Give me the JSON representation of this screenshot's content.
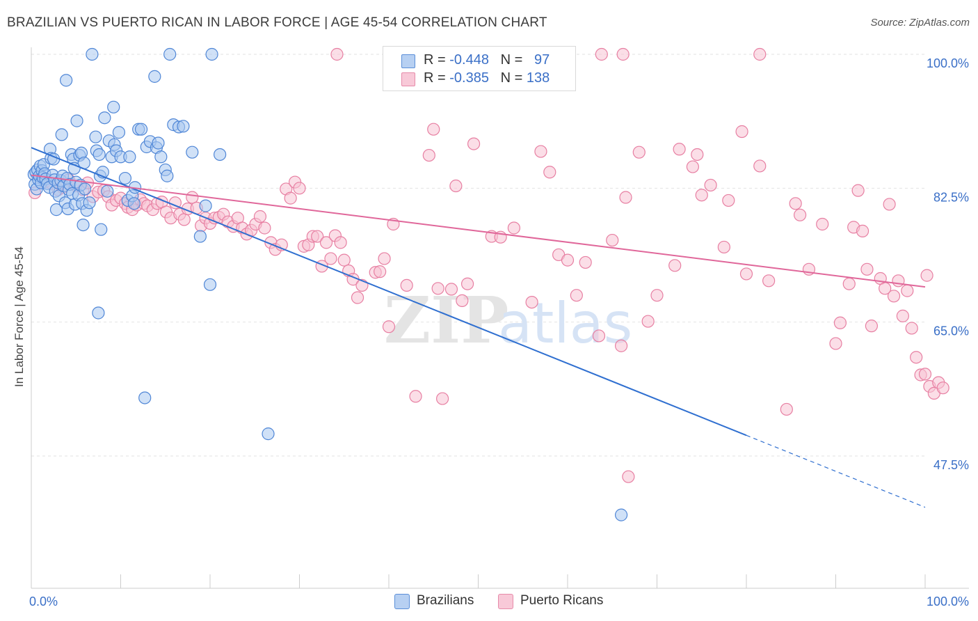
{
  "title": "BRAZILIAN VS PUERTO RICAN IN LABOR FORCE | AGE 45-54 CORRELATION CHART",
  "source": "Source: ZipAtlas.com",
  "watermark": {
    "zip": "ZIP",
    "atlas": "atlas"
  },
  "legend": {
    "rows": [
      {
        "r_label": "R = ",
        "r_value": "-0.448",
        "n_label": "N = ",
        "n_value": "97"
      },
      {
        "r_label": "R = ",
        "r_value": "-0.385",
        "n_label": "N = ",
        "n_value": "138"
      }
    ]
  },
  "bottom_legend": [
    "Brazilians",
    "Puerto Ricans"
  ],
  "colors": {
    "blue_fill": "#aac8f0",
    "blue_stroke": "#4f86d6",
    "blue_line": "#2f6fd0",
    "pink_fill": "#f7c3d3",
    "pink_stroke": "#e77fa2",
    "pink_line": "#e0679a",
    "tick_label": "#3a6fc7",
    "grid": "#e2e2e2"
  },
  "chart_data": {
    "type": "scatter",
    "title": "BRAZILIAN VS PUERTO RICAN IN LABOR FORCE | AGE 45-54 CORRELATION CHART",
    "xlabel": "",
    "ylabel": "In Labor Force | Age 45-54",
    "xlim": [
      0,
      100
    ],
    "ylim": [
      32,
      102
    ],
    "x_tick_labels": [
      "0.0%",
      "100.0%"
    ],
    "y_ticks": [
      47.5,
      65.0,
      82.5,
      100.0
    ],
    "y_tick_labels": [
      "47.5%",
      "65.0%",
      "82.5%",
      "100.0%"
    ],
    "grid": true,
    "legend_position": "top-center",
    "series": [
      {
        "name": "Brazilians",
        "r": -0.448,
        "n": 97,
        "trend": {
          "x": [
            0,
            80
          ],
          "y": [
            87.8,
            50.2
          ],
          "extended_to": [
            100,
            40.8
          ]
        },
        "points": [
          [
            0.3,
            84.3
          ],
          [
            0.4,
            83.0
          ],
          [
            0.5,
            84.6
          ],
          [
            0.6,
            82.4
          ],
          [
            0.7,
            84.9
          ],
          [
            0.8,
            83.6
          ],
          [
            0.9,
            84.1
          ],
          [
            1.0,
            85.4
          ],
          [
            1.1,
            83.2
          ],
          [
            1.2,
            84.8
          ],
          [
            1.3,
            83.9
          ],
          [
            1.4,
            85.6
          ],
          [
            1.5,
            84.4
          ],
          [
            1.6,
            83.7
          ],
          [
            1.8,
            83.1
          ],
          [
            2.0,
            82.6
          ],
          [
            2.1,
            87.6
          ],
          [
            2.2,
            86.4
          ],
          [
            2.4,
            84.2
          ],
          [
            2.5,
            86.3
          ],
          [
            2.6,
            83.6
          ],
          [
            2.7,
            82.1
          ],
          [
            2.8,
            79.7
          ],
          [
            3.0,
            83.2
          ],
          [
            3.1,
            81.5
          ],
          [
            3.3,
            83.5
          ],
          [
            3.4,
            89.5
          ],
          [
            3.5,
            84.1
          ],
          [
            3.6,
            82.8
          ],
          [
            3.8,
            80.6
          ],
          [
            3.9,
            96.6
          ],
          [
            4.0,
            83.8
          ],
          [
            4.1,
            79.8
          ],
          [
            4.2,
            82.3
          ],
          [
            4.3,
            83.0
          ],
          [
            4.5,
            86.9
          ],
          [
            4.6,
            81.8
          ],
          [
            4.7,
            86.3
          ],
          [
            4.8,
            85.1
          ],
          [
            4.9,
            80.4
          ],
          [
            5.0,
            83.3
          ],
          [
            5.1,
            91.3
          ],
          [
            5.3,
            81.6
          ],
          [
            5.4,
            86.8
          ],
          [
            5.5,
            82.9
          ],
          [
            5.6,
            87.1
          ],
          [
            5.7,
            80.5
          ],
          [
            5.8,
            77.7
          ],
          [
            5.9,
            85.8
          ],
          [
            6.0,
            82.4
          ],
          [
            6.2,
            79.6
          ],
          [
            6.5,
            80.6
          ],
          [
            6.8,
            100.0
          ],
          [
            7.2,
            89.2
          ],
          [
            7.3,
            87.4
          ],
          [
            7.5,
            66.2
          ],
          [
            7.6,
            86.9
          ],
          [
            7.7,
            84.1
          ],
          [
            7.8,
            77.1
          ],
          [
            8.0,
            84.6
          ],
          [
            8.2,
            91.7
          ],
          [
            8.5,
            82.1
          ],
          [
            8.7,
            88.7
          ],
          [
            9.0,
            86.6
          ],
          [
            9.2,
            93.1
          ],
          [
            9.3,
            88.2
          ],
          [
            9.5,
            87.4
          ],
          [
            9.8,
            89.8
          ],
          [
            10.0,
            86.6
          ],
          [
            10.5,
            83.8
          ],
          [
            10.8,
            80.9
          ],
          [
            11.0,
            86.6
          ],
          [
            11.3,
            81.5
          ],
          [
            11.5,
            80.5
          ],
          [
            11.6,
            82.6
          ],
          [
            12.0,
            90.2
          ],
          [
            12.3,
            90.2
          ],
          [
            12.7,
            55.1
          ],
          [
            12.9,
            87.9
          ],
          [
            13.3,
            88.6
          ],
          [
            13.8,
            97.1
          ],
          [
            14.0,
            87.8
          ],
          [
            14.2,
            88.4
          ],
          [
            14.5,
            86.6
          ],
          [
            15.0,
            84.9
          ],
          [
            15.2,
            84.1
          ],
          [
            15.5,
            100.0
          ],
          [
            15.9,
            90.8
          ],
          [
            16.5,
            90.5
          ],
          [
            17.0,
            90.6
          ],
          [
            18.0,
            87.2
          ],
          [
            18.9,
            76.2
          ],
          [
            19.5,
            80.2
          ],
          [
            20.0,
            69.9
          ],
          [
            20.2,
            100.0
          ],
          [
            21.1,
            86.9
          ],
          [
            26.5,
            50.4
          ],
          [
            66.0,
            39.8
          ]
        ]
      },
      {
        "name": "Puerto Ricans",
        "r": -0.385,
        "n": 138,
        "trend": {
          "x": [
            0,
            100
          ],
          "y": [
            84.2,
            69.6
          ]
        },
        "points": [
          [
            0.4,
            81.9
          ],
          [
            1.5,
            83.3
          ],
          [
            2.3,
            83.1
          ],
          [
            3.0,
            82.3
          ],
          [
            3.5,
            82.6
          ],
          [
            4.2,
            83.6
          ],
          [
            5.0,
            82.8
          ],
          [
            5.8,
            82.3
          ],
          [
            6.3,
            83.2
          ],
          [
            6.9,
            81.4
          ],
          [
            7.5,
            82.0
          ],
          [
            8.1,
            82.2
          ],
          [
            8.6,
            81.4
          ],
          [
            9.0,
            80.3
          ],
          [
            9.5,
            80.9
          ],
          [
            10.0,
            81.2
          ],
          [
            10.5,
            80.5
          ],
          [
            10.8,
            80.0
          ],
          [
            11.3,
            79.7
          ],
          [
            11.8,
            80.3
          ],
          [
            12.2,
            81.0
          ],
          [
            12.6,
            80.5
          ],
          [
            13.0,
            80.2
          ],
          [
            13.6,
            79.7
          ],
          [
            14.1,
            80.5
          ],
          [
            14.6,
            80.7
          ],
          [
            15.1,
            79.4
          ],
          [
            15.6,
            78.6
          ],
          [
            16.1,
            80.6
          ],
          [
            16.6,
            79.1
          ],
          [
            17.1,
            78.4
          ],
          [
            17.5,
            79.8
          ],
          [
            18.0,
            81.3
          ],
          [
            18.5,
            79.9
          ],
          [
            19.0,
            77.6
          ],
          [
            19.5,
            78.6
          ],
          [
            20.0,
            77.9
          ],
          [
            20.5,
            78.6
          ],
          [
            21.0,
            78.7
          ],
          [
            21.5,
            79.1
          ],
          [
            22.0,
            78.1
          ],
          [
            22.6,
            77.5
          ],
          [
            23.1,
            78.6
          ],
          [
            23.6,
            77.3
          ],
          [
            24.1,
            76.5
          ],
          [
            24.6,
            77.0
          ],
          [
            25.1,
            77.8
          ],
          [
            25.6,
            78.8
          ],
          [
            26.1,
            77.3
          ],
          [
            26.8,
            75.4
          ],
          [
            27.3,
            74.5
          ],
          [
            28.0,
            75.1
          ],
          [
            28.5,
            82.4
          ],
          [
            29.0,
            81.2
          ],
          [
            29.5,
            83.3
          ],
          [
            30.0,
            82.5
          ],
          [
            30.5,
            74.9
          ],
          [
            31.0,
            75.1
          ],
          [
            31.5,
            76.2
          ],
          [
            32.0,
            76.2
          ],
          [
            32.5,
            72.3
          ],
          [
            33.0,
            75.4
          ],
          [
            33.5,
            73.3
          ],
          [
            34.0,
            76.3
          ],
          [
            34.6,
            75.4
          ],
          [
            35.0,
            73.1
          ],
          [
            35.5,
            71.7
          ],
          [
            36.0,
            70.6
          ],
          [
            36.5,
            68.2
          ],
          [
            37.0,
            69.8
          ],
          [
            38.5,
            71.5
          ],
          [
            39.0,
            71.6
          ],
          [
            39.5,
            73.3
          ],
          [
            40.0,
            64.4
          ],
          [
            40.5,
            77.8
          ],
          [
            42.0,
            69.8
          ],
          [
            43.0,
            55.3
          ],
          [
            44.5,
            86.8
          ],
          [
            45.0,
            90.2
          ],
          [
            45.5,
            69.4
          ],
          [
            46.0,
            55.0
          ],
          [
            47.0,
            69.3
          ],
          [
            47.5,
            82.8
          ],
          [
            48.2,
            67.8
          ],
          [
            48.8,
            70.0
          ],
          [
            49.5,
            88.3
          ],
          [
            51.5,
            76.2
          ],
          [
            52.5,
            76.1
          ],
          [
            54.0,
            77.3
          ],
          [
            56.0,
            67.6
          ],
          [
            57.0,
            87.3
          ],
          [
            58.0,
            84.6
          ],
          [
            59.0,
            73.8
          ],
          [
            60.0,
            73.1
          ],
          [
            61.0,
            68.5
          ],
          [
            62.0,
            72.8
          ],
          [
            63.5,
            63.2
          ],
          [
            65.0,
            75.7
          ],
          [
            66.0,
            61.9
          ],
          [
            66.5,
            81.3
          ],
          [
            66.8,
            44.8
          ],
          [
            68.0,
            87.2
          ],
          [
            69.0,
            65.1
          ],
          [
            70.0,
            68.5
          ],
          [
            72.0,
            72.4
          ],
          [
            72.5,
            87.6
          ],
          [
            74.0,
            85.3
          ],
          [
            74.5,
            86.9
          ],
          [
            75.0,
            81.6
          ],
          [
            76.0,
            82.9
          ],
          [
            77.5,
            74.8
          ],
          [
            78.0,
            80.9
          ],
          [
            79.5,
            89.9
          ],
          [
            80.0,
            71.3
          ],
          [
            81.5,
            85.4
          ],
          [
            82.5,
            70.4
          ],
          [
            84.5,
            53.6
          ],
          [
            85.5,
            80.5
          ],
          [
            86.0,
            79.0
          ],
          [
            87.0,
            71.9
          ],
          [
            88.5,
            77.8
          ],
          [
            90.0,
            62.2
          ],
          [
            90.5,
            64.9
          ],
          [
            91.5,
            70.0
          ],
          [
            92.0,
            77.4
          ],
          [
            92.5,
            82.2
          ],
          [
            93.0,
            76.9
          ],
          [
            93.5,
            71.9
          ],
          [
            94.0,
            64.5
          ],
          [
            95.0,
            70.7
          ],
          [
            95.5,
            69.4
          ],
          [
            96.0,
            80.4
          ],
          [
            96.5,
            68.4
          ],
          [
            97.0,
            70.4
          ],
          [
            97.5,
            65.8
          ],
          [
            98.0,
            69.1
          ],
          [
            98.5,
            64.2
          ],
          [
            99.0,
            60.4
          ],
          [
            99.5,
            58.1
          ],
          [
            100.0,
            58.2
          ],
          [
            100.5,
            56.6
          ],
          [
            101.0,
            55.7
          ],
          [
            101.5,
            57.1
          ],
          [
            102.0,
            56.4
          ],
          [
            100.2,
            71.1
          ]
        ]
      }
    ],
    "plotted_top_points_pink": [
      [
        34.2,
        100
      ],
      [
        49.3,
        100
      ],
      [
        63.8,
        100
      ],
      [
        66.2,
        100
      ],
      [
        81.5,
        100
      ]
    ]
  }
}
